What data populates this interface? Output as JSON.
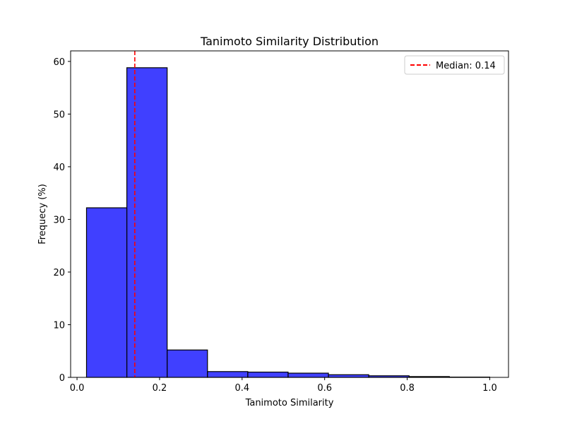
{
  "chart_data": {
    "type": "bar",
    "title": "Tanimoto Similarity Distribution",
    "xlabel": "Tanimoto Similarity",
    "ylabel": "Frequecy (%)",
    "xlim": [
      -0.0155,
      1.0455
    ],
    "ylim": [
      0,
      62
    ],
    "x_ticks": [
      0.0,
      0.2,
      0.4,
      0.6,
      0.8,
      1.0
    ],
    "x_tick_labels": [
      "0.0",
      "0.2",
      "0.4",
      "0.6",
      "0.8",
      "1.0"
    ],
    "y_ticks": [
      0,
      10,
      20,
      30,
      40,
      50,
      60
    ],
    "y_tick_labels": [
      "0",
      "10",
      "20",
      "30",
      "40",
      "50",
      "60"
    ],
    "bin_edges": [
      0.023,
      0.1207,
      0.2184,
      0.3161,
      0.4138,
      0.5115,
      0.6092,
      0.7069,
      0.8046,
      0.9023,
      1.0
    ],
    "values": [
      32.2,
      58.8,
      5.2,
      1.1,
      1.0,
      0.8,
      0.5,
      0.3,
      0.15,
      0.05
    ],
    "bar_color": "#0000ff",
    "bar_edge_color": "#000000",
    "median": {
      "value": 0.14,
      "label": "Median: 0.14",
      "color": "#ff0000"
    },
    "legend_position": "upper-right",
    "grid": false
  }
}
